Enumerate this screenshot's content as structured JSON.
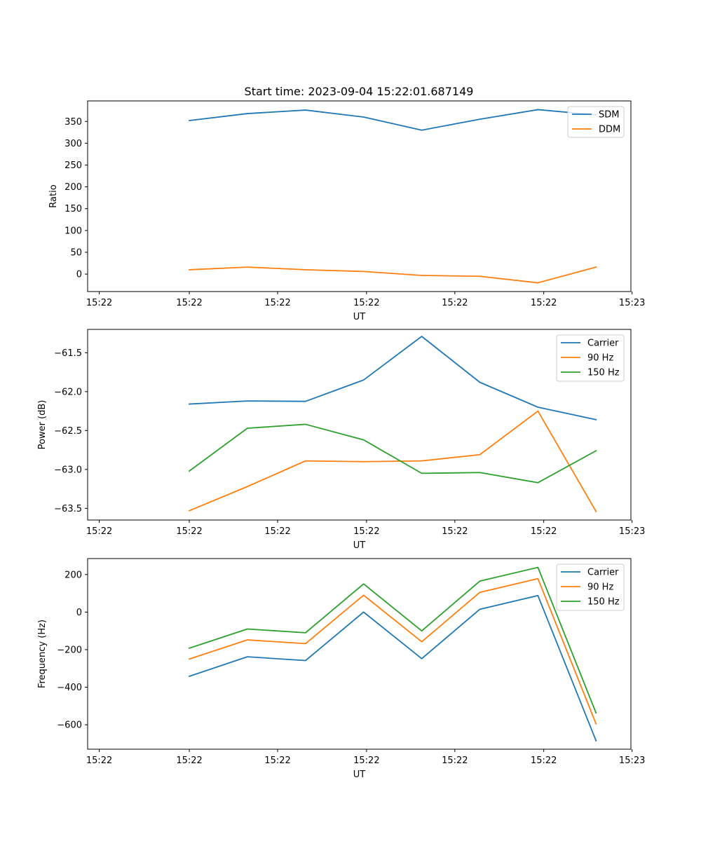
{
  "figure": {
    "title": "Start time: 2023-09-04 15:22:01.687149"
  },
  "colors": {
    "blue": "#1f77b4",
    "orange": "#ff7f0e",
    "green": "#2ca02c"
  },
  "chart_data": [
    {
      "type": "line",
      "title": "Start time: 2023-09-04 15:22:01.687149",
      "xlabel": "UT",
      "ylabel": "Ratio",
      "x": [
        1,
        2,
        3,
        4,
        5,
        6,
        7,
        8
      ],
      "xlim": [
        -0.75,
        8.6
      ],
      "xticks": [
        {
          "value": -0.55,
          "label": "15:22"
        },
        {
          "value": 1.0,
          "label": "15:22"
        },
        {
          "value": 2.52,
          "label": "15:22"
        },
        {
          "value": 4.05,
          "label": "15:22"
        },
        {
          "value": 5.57,
          "label": "15:22"
        },
        {
          "value": 7.1,
          "label": "15:22"
        },
        {
          "value": 8.62,
          "label": "15:23"
        }
      ],
      "ylim": [
        -40,
        397
      ],
      "yticks": [
        {
          "value": 0,
          "label": "0"
        },
        {
          "value": 50,
          "label": "50"
        },
        {
          "value": 100,
          "label": "100"
        },
        {
          "value": 150,
          "label": "150"
        },
        {
          "value": 200,
          "label": "200"
        },
        {
          "value": 250,
          "label": "250"
        },
        {
          "value": 300,
          "label": "300"
        },
        {
          "value": 350,
          "label": "350"
        }
      ],
      "legend": "top-right",
      "series": [
        {
          "name": "SDM",
          "color": "#1f77b4",
          "values": [
            352,
            368,
            376,
            360,
            330,
            355,
            377,
            365
          ]
        },
        {
          "name": "DDM",
          "color": "#ff7f0e",
          "values": [
            10,
            16,
            10,
            6,
            -3,
            -5,
            -20,
            16
          ]
        }
      ]
    },
    {
      "type": "line",
      "xlabel": "UT",
      "ylabel": "Power (dB)",
      "x": [
        1,
        2,
        3,
        4,
        5,
        6,
        7,
        8
      ],
      "xlim": [
        -0.75,
        8.6
      ],
      "xticks": [
        {
          "value": -0.55,
          "label": "15:22"
        },
        {
          "value": 1.0,
          "label": "15:22"
        },
        {
          "value": 2.52,
          "label": "15:22"
        },
        {
          "value": 4.05,
          "label": "15:22"
        },
        {
          "value": 5.57,
          "label": "15:22"
        },
        {
          "value": 7.1,
          "label": "15:22"
        },
        {
          "value": 8.62,
          "label": "15:23"
        }
      ],
      "ylim": [
        -63.65,
        -61.2
      ],
      "yticks": [
        {
          "value": -63.5,
          "label": "−63.5"
        },
        {
          "value": -63.0,
          "label": "−63.0"
        },
        {
          "value": -62.5,
          "label": "−62.5"
        },
        {
          "value": -62.0,
          "label": "−62.0"
        },
        {
          "value": -61.5,
          "label": "−61.5"
        }
      ],
      "legend": "top-right",
      "series": [
        {
          "name": "Carrier",
          "color": "#1f77b4",
          "values": [
            -62.16,
            -62.12,
            -62.125,
            -61.85,
            -61.29,
            -61.88,
            -62.2,
            -62.36
          ]
        },
        {
          "name": "90 Hz",
          "color": "#ff7f0e",
          "values": [
            -63.53,
            -63.22,
            -62.89,
            -62.9,
            -62.89,
            -62.81,
            -62.25,
            -63.54
          ]
        },
        {
          "name": "150 Hz",
          "color": "#2ca02c",
          "values": [
            -63.02,
            -62.47,
            -62.42,
            -62.62,
            -63.05,
            -63.04,
            -63.17,
            -62.76
          ]
        }
      ]
    },
    {
      "type": "line",
      "xlabel": "UT",
      "ylabel": "Frequency (Hz)",
      "x": [
        1,
        2,
        3,
        4,
        5,
        6,
        7,
        8
      ],
      "xlim": [
        -0.75,
        8.6
      ],
      "xticks": [
        {
          "value": -0.55,
          "label": "15:22"
        },
        {
          "value": 1.0,
          "label": "15:22"
        },
        {
          "value": 2.52,
          "label": "15:22"
        },
        {
          "value": 4.05,
          "label": "15:22"
        },
        {
          "value": 5.57,
          "label": "15:22"
        },
        {
          "value": 7.1,
          "label": "15:22"
        },
        {
          "value": 8.62,
          "label": "15:23"
        }
      ],
      "ylim": [
        -730,
        285
      ],
      "yticks": [
        {
          "value": -600,
          "label": "−600"
        },
        {
          "value": -400,
          "label": "−400"
        },
        {
          "value": -200,
          "label": "−200"
        },
        {
          "value": 0,
          "label": "0"
        },
        {
          "value": 200,
          "label": "200"
        }
      ],
      "legend": "top-right",
      "series": [
        {
          "name": "Carrier",
          "color": "#1f77b4",
          "values": [
            -342,
            -238,
            -258,
            0,
            -248,
            15,
            88,
            -685
          ]
        },
        {
          "name": "90 Hz",
          "color": "#ff7f0e",
          "values": [
            -250,
            -148,
            -168,
            90,
            -158,
            105,
            178,
            -595
          ]
        },
        {
          "name": "150 Hz",
          "color": "#2ca02c",
          "values": [
            -192,
            -90,
            -110,
            150,
            -100,
            165,
            238,
            -537
          ]
        }
      ]
    }
  ]
}
